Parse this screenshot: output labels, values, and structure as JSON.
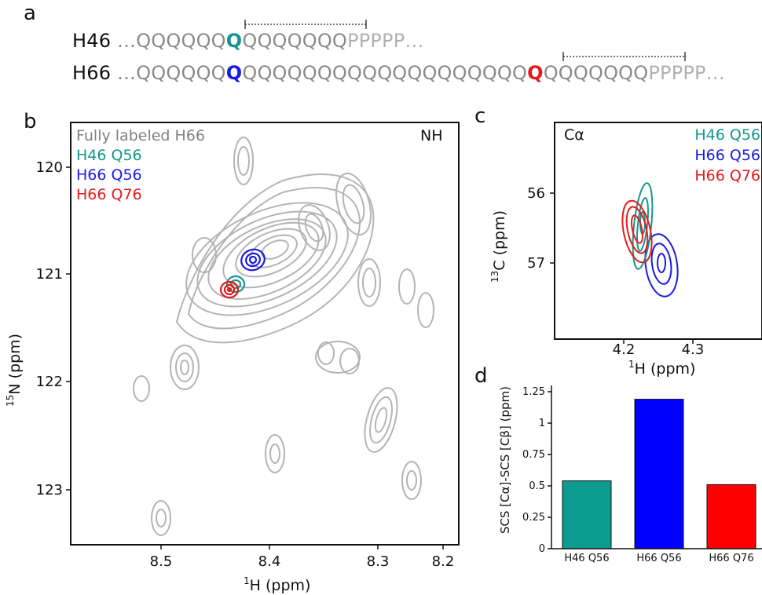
{
  "panels": {
    "a": "a",
    "b": "b",
    "c": "c",
    "d": "d"
  },
  "sequences": {
    "h46": {
      "label": "H46",
      "prefix": " …QQQQQQ",
      "highlight": "Q",
      "middle": "QQQQQQQ",
      "tail": "PPPPP…",
      "highlight_color": "#14978f"
    },
    "h66": {
      "label": "H66",
      "prefix": " …QQQQQQ",
      "highlight1": "Q",
      "middle": "QQQQQQQQQQQQQQQQQQQ",
      "highlight2": "Q",
      "middle2": "QQQQQQQ",
      "tail": "PPPPP…",
      "highlight1_color": "#1a1ae6",
      "highlight2_color": "#e61a1a"
    }
  },
  "panel_b": {
    "legend": [
      {
        "label": "Fully labeled H66",
        "color": "#808080"
      },
      {
        "label": "H46 Q56",
        "color": "#14978f"
      },
      {
        "label": "H66 Q56",
        "color": "#1a1ae6"
      },
      {
        "label": "H66 Q76",
        "color": "#e61a1a"
      }
    ],
    "tag": "NH",
    "xlabel_sup": "1",
    "xlabel": "H (ppm)",
    "ylabel_sup": "15",
    "ylabel": "N (ppm)",
    "x_ticks": [
      "8.5",
      "8.4",
      "8.3",
      "8.2"
    ],
    "y_ticks": [
      "120",
      "121",
      "122",
      "123"
    ]
  },
  "panel_c": {
    "legend": [
      {
        "label": "H46 Q56",
        "color": "#14978f"
      },
      {
        "label": "H66 Q56",
        "color": "#1a1ae6"
      },
      {
        "label": "H66 Q76",
        "color": "#e61a1a"
      }
    ],
    "tag": "Cα",
    "xlabel_sup": "1",
    "xlabel": "H (ppm)",
    "ylabel_sup": "13",
    "ylabel": "C (ppm)",
    "x_ticks": [
      "4.2",
      "4.3"
    ],
    "y_ticks": [
      "56",
      "57"
    ]
  },
  "chart_data": {
    "type": "bar",
    "categories": [
      "H46 Q56",
      "H66 Q56",
      "H66 Q76"
    ],
    "values": [
      0.54,
      1.19,
      0.51
    ],
    "colors": [
      "#0c9c8f",
      "#0000ff",
      "#ff0000"
    ],
    "title": "",
    "xlabel": "",
    "ylabel": "SCS [Cα]-SCS [Cβ] (ppm)",
    "ylim": [
      0,
      1.3
    ],
    "y_ticks": [
      "0",
      "0.25",
      "0.5",
      "0.75",
      "1",
      "1.25"
    ]
  }
}
